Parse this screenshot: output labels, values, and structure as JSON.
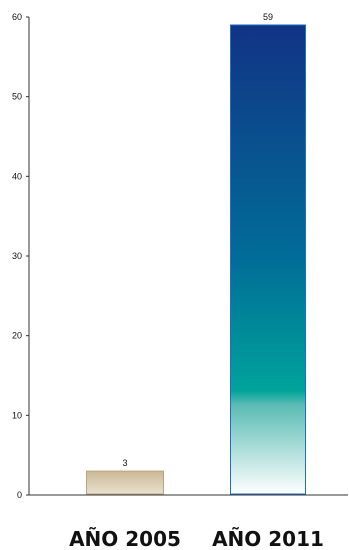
{
  "chart_data": {
    "type": "bar",
    "categories": [
      "AÑO 2005",
      "AÑO 2011"
    ],
    "values": [
      3,
      59
    ],
    "ylim": [
      0,
      60
    ],
    "yticks": [
      0,
      10,
      20,
      30,
      40,
      50,
      60
    ],
    "grid": false,
    "legend": "none",
    "colors": {
      "bar_2005_top": "#c9b896",
      "bar_2005_bottom": "#e9e1cf",
      "bar_2011_top": "#123385",
      "bar_2011_mid": "#00a39a",
      "bar_2011_bottom": "#ffffff",
      "bar_2011_border": "#1f6fc7",
      "axis": "#333333"
    }
  }
}
